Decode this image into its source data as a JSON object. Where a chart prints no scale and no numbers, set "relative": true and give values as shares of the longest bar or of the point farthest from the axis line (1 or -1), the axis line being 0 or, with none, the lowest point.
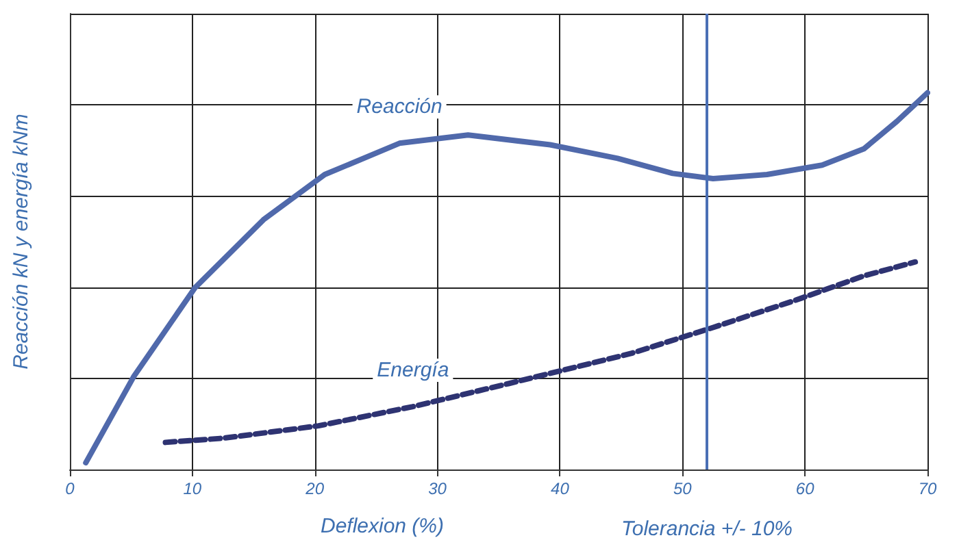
{
  "chart_data": {
    "type": "line",
    "relative": true,
    "xlabel": "Deflexion (%)",
    "ylabel": "Reacción kN y energía kNm",
    "xlim": [
      0,
      70
    ],
    "xticks": [
      0,
      10,
      20,
      30,
      40,
      50,
      60,
      70
    ],
    "grid": true,
    "legend": false,
    "marker": "none",
    "ref_lines": [
      {
        "axis": "x",
        "value": 52,
        "label": "Tolerancia +/- 10%",
        "color": "#4a6fb5"
      }
    ],
    "series": [
      {
        "name": "Reacción",
        "color": "#5069ab",
        "line_style": "solid",
        "x": [
          1.3,
          5.2,
          10.2,
          15.8,
          20.8,
          26.9,
          32.5,
          39.2,
          44.7,
          49.2,
          52.5,
          56.9,
          61.4,
          64.8,
          67.5,
          70
        ],
        "values": [
          0.018,
          0.246,
          0.482,
          0.663,
          0.783,
          0.866,
          0.888,
          0.862,
          0.826,
          0.786,
          0.772,
          0.783,
          0.808,
          0.851,
          0.924,
          1.0
        ]
      },
      {
        "name": "Energía",
        "color": "#2e3372",
        "line_style": "dashed",
        "x": [
          7.8,
          12.5,
          20.3,
          28,
          35.8,
          40.3,
          45.8,
          52.5,
          59.2,
          64.8,
          69
        ],
        "values": [
          0.072,
          0.083,
          0.116,
          0.167,
          0.228,
          0.264,
          0.308,
          0.377,
          0.449,
          0.514,
          0.551
        ]
      }
    ]
  }
}
